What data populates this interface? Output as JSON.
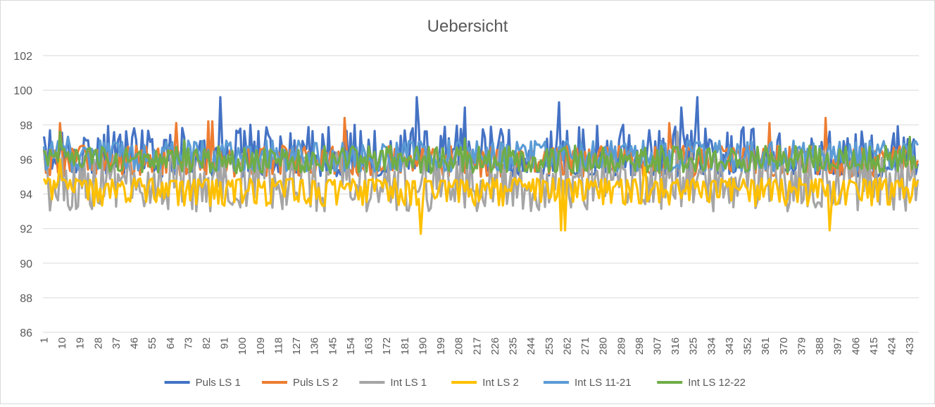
{
  "chart_data": {
    "type": "line",
    "title": "Uebersicht",
    "xlabel": "",
    "ylabel": "",
    "ylim": [
      86,
      102
    ],
    "y_ticks": [
      86,
      88,
      90,
      92,
      94,
      96,
      98,
      100,
      102
    ],
    "x_count": 437,
    "x_tick_step": 9,
    "x_tick_labels": [
      "1",
      "10",
      "19",
      "28",
      "37",
      "46",
      "55",
      "64",
      "73",
      "82",
      "91",
      "100",
      "109",
      "118",
      "127",
      "136",
      "145",
      "154",
      "163",
      "172",
      "181",
      "190",
      "199",
      "208",
      "217",
      "226",
      "235",
      "244",
      "253",
      "262",
      "271",
      "280",
      "289",
      "298",
      "307",
      "316",
      "325",
      "334",
      "343",
      "352",
      "361",
      "370",
      "379",
      "388",
      "397",
      "406",
      "415",
      "424",
      "433"
    ],
    "grid": "horizontal",
    "legend_position": "bottom",
    "series": [
      {
        "name": "Puls LS 1",
        "color": "#4472C4",
        "baseline": 96.0,
        "low": 95.0,
        "high": 98.0,
        "spikes": [
          [
            88,
            99.6
          ],
          [
            186,
            99.6
          ],
          [
            210,
            99.0
          ],
          [
            257,
            99.3
          ],
          [
            318,
            99.0
          ],
          [
            326,
            99.6
          ]
        ]
      },
      {
        "name": "Puls LS 2",
        "color": "#ED7D31",
        "baseline": 96.0,
        "low": 95.0,
        "high": 96.8,
        "spikes": [
          [
            8,
            98.1
          ],
          [
            66,
            98.1
          ],
          [
            82,
            98.2
          ],
          [
            84,
            98.2
          ],
          [
            150,
            98.4
          ],
          [
            312,
            98.1
          ],
          [
            362,
            98.1
          ],
          [
            390,
            98.4
          ]
        ]
      },
      {
        "name": "Int LS 1",
        "color": "#A5A5A5",
        "baseline": 94.8,
        "low": 93.0,
        "high": 96.5,
        "spikes": [
          [
            228,
            97.0
          ],
          [
            316,
            97.6
          ]
        ]
      },
      {
        "name": "Int LS 2",
        "color": "#FFC000",
        "baseline": 94.5,
        "low": 93.3,
        "high": 94.9,
        "spikes": [
          [
            188,
            91.7
          ],
          [
            258,
            91.9
          ],
          [
            260,
            91.9
          ],
          [
            392,
            91.9
          ],
          [
            8,
            96.0
          ],
          [
            300,
            96.0
          ]
        ]
      },
      {
        "name": "Int LS 11-21",
        "color": "#5B9BD5",
        "baseline": 96.3,
        "low": 95.3,
        "high": 97.1,
        "spikes": [
          [
            12,
            97.3
          ]
        ]
      },
      {
        "name": "Int LS 12-22",
        "color": "#70AD47",
        "baseline": 96.0,
        "low": 95.2,
        "high": 96.8,
        "spikes": [
          [
            8,
            97.6
          ],
          [
            70,
            97.1
          ],
          [
            210,
            97.2
          ],
          [
            432,
            97.3
          ]
        ]
      }
    ]
  }
}
